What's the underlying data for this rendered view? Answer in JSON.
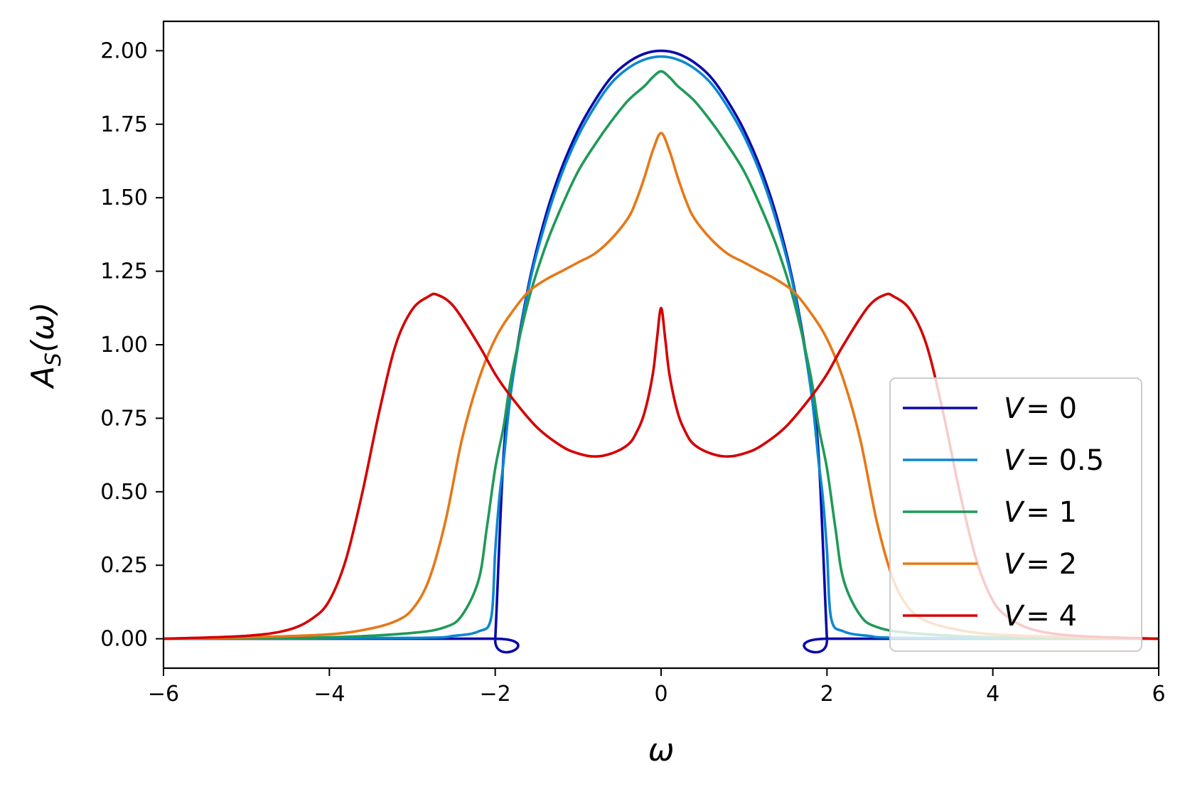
{
  "chart_data": {
    "type": "line",
    "xlabel": "ω",
    "ylabel_main": "A",
    "ylabel_sub": "S",
    "ylabel_arg": "(ω)",
    "xlim": [
      -6,
      6
    ],
    "ylim": [
      -0.1,
      2.1
    ],
    "xticks": [
      -6,
      -4,
      -2,
      0,
      2,
      4,
      6
    ],
    "xtick_labels": [
      "−6",
      "−4",
      "−2",
      "0",
      "2",
      "4",
      "6"
    ],
    "yticks": [
      0,
      0.25,
      0.5,
      0.75,
      1.0,
      1.25,
      1.5,
      1.75,
      2.0
    ],
    "ytick_labels": [
      "0.00",
      "0.25",
      "0.50",
      "0.75",
      "1.00",
      "1.25",
      "1.50",
      "1.75",
      "2.00"
    ],
    "grid": false,
    "legend_position": "bottom-right",
    "series": [
      {
        "name": "V = 0",
        "label_var": "V",
        "label_val": "= 0",
        "color": "#0a0aaa",
        "x": [
          -6,
          -2.02,
          -2.0,
          -1.9,
          -1.8,
          -1.6,
          -1.4,
          -1.2,
          -1.0,
          -0.8,
          -0.6,
          -0.4,
          -0.2,
          0,
          0.2,
          0.4,
          0.6,
          0.8,
          1.0,
          1.2,
          1.4,
          1.6,
          1.8,
          1.9,
          2.0,
          2.02,
          6
        ],
        "y": [
          0,
          0,
          0.0,
          0.62,
          0.87,
          1.2,
          1.43,
          1.6,
          1.73,
          1.83,
          1.91,
          1.96,
          1.99,
          2.0,
          1.99,
          1.96,
          1.91,
          1.83,
          1.73,
          1.6,
          1.43,
          1.2,
          0.87,
          0.62,
          0.0,
          0,
          0
        ]
      },
      {
        "name": "V = 0.5",
        "label_var": "V",
        "label_val": "= 0.5",
        "color": "#0b87d0",
        "x": [
          -6,
          -3.0,
          -2.5,
          -2.2,
          -2.05,
          -2.0,
          -1.95,
          -1.9,
          -1.8,
          -1.6,
          -1.4,
          -1.2,
          -1.0,
          -0.8,
          -0.6,
          -0.4,
          -0.2,
          0,
          0.2,
          0.4,
          0.6,
          0.8,
          1.0,
          1.2,
          1.4,
          1.6,
          1.8,
          1.9,
          1.95,
          2.0,
          2.05,
          2.2,
          2.5,
          3.0,
          6
        ],
        "y": [
          0,
          0.003,
          0.01,
          0.025,
          0.07,
          0.3,
          0.48,
          0.6,
          0.86,
          1.19,
          1.41,
          1.58,
          1.71,
          1.81,
          1.89,
          1.94,
          1.97,
          1.98,
          1.97,
          1.94,
          1.89,
          1.81,
          1.71,
          1.58,
          1.41,
          1.19,
          0.86,
          0.6,
          0.48,
          0.3,
          0.07,
          0.025,
          0.01,
          0.003,
          0
        ]
      },
      {
        "name": "V = 1",
        "label_var": "V",
        "label_val": "= 1",
        "color": "#1f9a57",
        "x": [
          -6,
          -4.0,
          -3.0,
          -2.6,
          -2.4,
          -2.2,
          -2.1,
          -2.0,
          -1.9,
          -1.8,
          -1.6,
          -1.4,
          -1.2,
          -1.0,
          -0.8,
          -0.6,
          -0.4,
          -0.2,
          -0.1,
          0,
          0.1,
          0.2,
          0.4,
          0.6,
          0.8,
          1.0,
          1.2,
          1.4,
          1.6,
          1.8,
          1.9,
          2.0,
          2.1,
          2.2,
          2.4,
          2.6,
          3.0,
          4.0,
          6
        ],
        "y": [
          0,
          0.005,
          0.02,
          0.04,
          0.08,
          0.2,
          0.38,
          0.58,
          0.72,
          0.9,
          1.15,
          1.33,
          1.47,
          1.59,
          1.68,
          1.76,
          1.83,
          1.88,
          1.91,
          1.93,
          1.91,
          1.88,
          1.83,
          1.76,
          1.68,
          1.59,
          1.47,
          1.33,
          1.15,
          0.9,
          0.72,
          0.58,
          0.38,
          0.2,
          0.08,
          0.04,
          0.02,
          0.005,
          0
        ]
      },
      {
        "name": "V = 2",
        "label_var": "V",
        "label_val": "= 2",
        "color": "#e67817",
        "x": [
          -6,
          -5.0,
          -4.0,
          -3.5,
          -3.2,
          -3.0,
          -2.8,
          -2.6,
          -2.4,
          -2.2,
          -2.0,
          -1.8,
          -1.6,
          -1.4,
          -1.2,
          -1.0,
          -0.8,
          -0.6,
          -0.4,
          -0.3,
          -0.2,
          -0.1,
          0,
          0.1,
          0.2,
          0.3,
          0.4,
          0.6,
          0.8,
          1.0,
          1.2,
          1.4,
          1.6,
          1.8,
          2.0,
          2.2,
          2.4,
          2.6,
          2.8,
          3.0,
          3.2,
          3.5,
          4.0,
          5.0,
          6
        ],
        "y": [
          0,
          0.005,
          0.015,
          0.035,
          0.06,
          0.1,
          0.2,
          0.4,
          0.68,
          0.88,
          1.02,
          1.11,
          1.18,
          1.22,
          1.25,
          1.28,
          1.31,
          1.36,
          1.43,
          1.49,
          1.57,
          1.66,
          1.72,
          1.66,
          1.57,
          1.49,
          1.43,
          1.36,
          1.31,
          1.28,
          1.25,
          1.22,
          1.18,
          1.11,
          1.02,
          0.88,
          0.68,
          0.4,
          0.2,
          0.1,
          0.06,
          0.035,
          0.015,
          0.005,
          0
        ]
      },
      {
        "name": "V = 4",
        "label_var": "V",
        "label_val": "= 4",
        "color": "#d40000",
        "x": [
          -6,
          -5.0,
          -4.5,
          -4.2,
          -4.0,
          -3.8,
          -3.6,
          -3.4,
          -3.2,
          -3.0,
          -2.8,
          -2.7,
          -2.5,
          -2.2,
          -2.0,
          -1.8,
          -1.5,
          -1.2,
          -1.0,
          -0.8,
          -0.6,
          -0.4,
          -0.3,
          -0.2,
          -0.1,
          -0.05,
          0,
          0.05,
          0.1,
          0.2,
          0.3,
          0.4,
          0.6,
          0.8,
          1.0,
          1.2,
          1.5,
          1.8,
          2.0,
          2.2,
          2.5,
          2.7,
          2.8,
          3.0,
          3.2,
          3.4,
          3.6,
          3.8,
          4.0,
          4.2,
          4.5,
          5.0,
          6
        ],
        "y": [
          0,
          0.01,
          0.03,
          0.07,
          0.13,
          0.27,
          0.5,
          0.77,
          1.0,
          1.12,
          1.165,
          1.17,
          1.13,
          1.0,
          0.9,
          0.82,
          0.72,
          0.655,
          0.63,
          0.62,
          0.63,
          0.66,
          0.7,
          0.77,
          0.9,
          1.02,
          1.125,
          1.02,
          0.9,
          0.77,
          0.7,
          0.66,
          0.63,
          0.62,
          0.63,
          0.655,
          0.72,
          0.82,
          0.9,
          1.0,
          1.13,
          1.17,
          1.165,
          1.12,
          1.0,
          0.77,
          0.5,
          0.27,
          0.13,
          0.07,
          0.03,
          0.01,
          0
        ]
      }
    ]
  }
}
